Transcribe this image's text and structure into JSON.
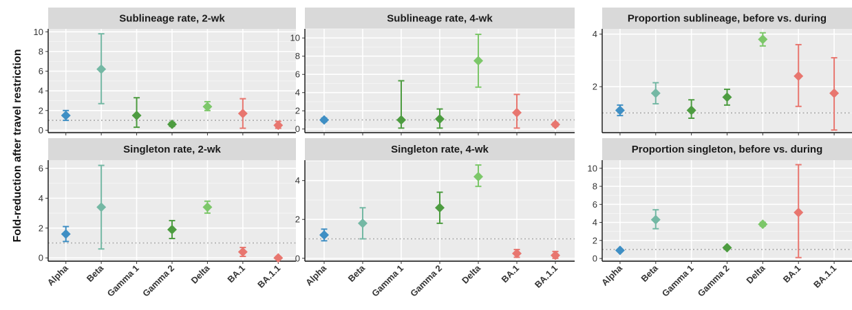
{
  "chart_data": {
    "type": "scatter",
    "ylabel": "Fold-reduction after travel restriction",
    "categories": [
      "Alpha",
      "Beta",
      "Gamma 1",
      "Gamma 2",
      "Delta",
      "BA.1",
      "BA.1.1"
    ],
    "colors": {
      "Alpha": "#3f8fc4",
      "Beta": "#74b8a4",
      "Gamma 1": "#4d9c40",
      "Gamma 2": "#4d9c40",
      "Delta": "#7cc769",
      "BA.1": "#e8766f",
      "BA.1.1": "#e8766f"
    },
    "reference_line": 1,
    "panels": [
      {
        "title": "Sublineage rate, 2-wk",
        "yticks": [
          "0",
          "2",
          "4",
          "6",
          "8",
          "10"
        ],
        "ylim": [
          -0.25,
          10.3
        ],
        "points": [
          {
            "category": "Alpha",
            "value": 1.5,
            "lower": 1.0,
            "upper": 2.0
          },
          {
            "category": "Beta",
            "value": 6.2,
            "lower": 2.7,
            "upper": 9.8
          },
          {
            "category": "Gamma 1",
            "value": 1.5,
            "lower": 0.3,
            "upper": 3.3
          },
          {
            "category": "Gamma 2",
            "value": 0.6,
            "lower": 0.4,
            "upper": 0.8
          },
          {
            "category": "Delta",
            "value": 2.4,
            "lower": 2.0,
            "upper": 2.9
          },
          {
            "category": "BA.1",
            "value": 1.7,
            "lower": 0.2,
            "upper": 3.2
          },
          {
            "category": "BA.1.1",
            "value": 0.5,
            "lower": 0.2,
            "upper": 0.9
          }
        ]
      },
      {
        "title": "Sublineage rate, 4-wk",
        "yticks": [
          "0",
          "2",
          "4",
          "6",
          "8",
          "10"
        ],
        "ylim": [
          -0.4,
          11.0
        ],
        "points": [
          {
            "category": "Alpha",
            "value": 1.0,
            "lower": 0.8,
            "upper": 1.2
          },
          {
            "category": "Gamma 1",
            "value": 1.0,
            "lower": 0.1,
            "upper": 5.3
          },
          {
            "category": "Gamma 2",
            "value": 1.1,
            "lower": 0.1,
            "upper": 2.2
          },
          {
            "category": "Delta",
            "value": 7.5,
            "lower": 4.6,
            "upper": 10.4
          },
          {
            "category": "BA.1",
            "value": 1.8,
            "lower": 0.1,
            "upper": 3.8
          },
          {
            "category": "BA.1.1",
            "value": 0.5,
            "lower": 0.3,
            "upper": 0.7
          }
        ]
      },
      {
        "title": "Proportion sublineage, before vs. during",
        "yticks": [
          "2",
          "4"
        ],
        "ylim": [
          0.25,
          4.2
        ],
        "points": [
          {
            "category": "Alpha",
            "value": 1.1,
            "lower": 0.9,
            "upper": 1.3
          },
          {
            "category": "Beta",
            "value": 1.75,
            "lower": 1.35,
            "upper": 2.15
          },
          {
            "category": "Gamma 1",
            "value": 1.1,
            "lower": 0.8,
            "upper": 1.5
          },
          {
            "category": "Gamma 2",
            "value": 1.6,
            "lower": 1.3,
            "upper": 1.9
          },
          {
            "category": "Delta",
            "value": 3.8,
            "lower": 3.55,
            "upper": 4.05
          },
          {
            "category": "BA.1",
            "value": 2.4,
            "lower": 1.25,
            "upper": 3.6
          },
          {
            "category": "BA.1.1",
            "value": 1.75,
            "lower": 0.35,
            "upper": 3.1
          }
        ]
      },
      {
        "title": "Singleton rate, 2-wk",
        "yticks": [
          "0",
          "2",
          "4",
          "6"
        ],
        "ylim": [
          -0.22,
          6.55
        ],
        "points": [
          {
            "category": "Alpha",
            "value": 1.6,
            "lower": 1.1,
            "upper": 2.1
          },
          {
            "category": "Beta",
            "value": 3.4,
            "lower": 0.6,
            "upper": 6.2
          },
          {
            "category": "Gamma 2",
            "value": 1.9,
            "lower": 1.3,
            "upper": 2.5
          },
          {
            "category": "Delta",
            "value": 3.4,
            "lower": 3.0,
            "upper": 3.8
          },
          {
            "category": "BA.1",
            "value": 0.4,
            "lower": 0.1,
            "upper": 0.7
          },
          {
            "category": "BA.1.1",
            "value": 0.0,
            "lower": 0.0,
            "upper": 0.1
          }
        ]
      },
      {
        "title": "Singleton rate, 4-wk",
        "yticks": [
          "0",
          "2",
          "4"
        ],
        "ylim": [
          -0.15,
          5.05
        ],
        "points": [
          {
            "category": "Alpha",
            "value": 1.2,
            "lower": 0.9,
            "upper": 1.5
          },
          {
            "category": "Beta",
            "value": 1.8,
            "lower": 1.0,
            "upper": 2.6
          },
          {
            "category": "Gamma 2",
            "value": 2.6,
            "lower": 1.8,
            "upper": 3.4
          },
          {
            "category": "Delta",
            "value": 4.2,
            "lower": 3.7,
            "upper": 4.8
          },
          {
            "category": "BA.1",
            "value": 0.25,
            "lower": 0.05,
            "upper": 0.45
          },
          {
            "category": "BA.1.1",
            "value": 0.15,
            "lower": 0.0,
            "upper": 0.35
          }
        ]
      },
      {
        "title": "Proportion singleton, before vs. during",
        "yticks": [
          "0",
          "2",
          "4",
          "6",
          "8",
          "10"
        ],
        "ylim": [
          -0.3,
          10.9
        ],
        "points": [
          {
            "category": "Alpha",
            "value": 0.9,
            "lower": 0.8,
            "upper": 1.0
          },
          {
            "category": "Beta",
            "value": 4.3,
            "lower": 3.3,
            "upper": 5.4
          },
          {
            "category": "Gamma 2",
            "value": 1.2,
            "lower": 1.1,
            "upper": 1.3
          },
          {
            "category": "Delta",
            "value": 3.8,
            "lower": 3.6,
            "upper": 4.0
          },
          {
            "category": "BA.1",
            "value": 5.1,
            "lower": 0.1,
            "upper": 10.4
          }
        ]
      }
    ]
  }
}
